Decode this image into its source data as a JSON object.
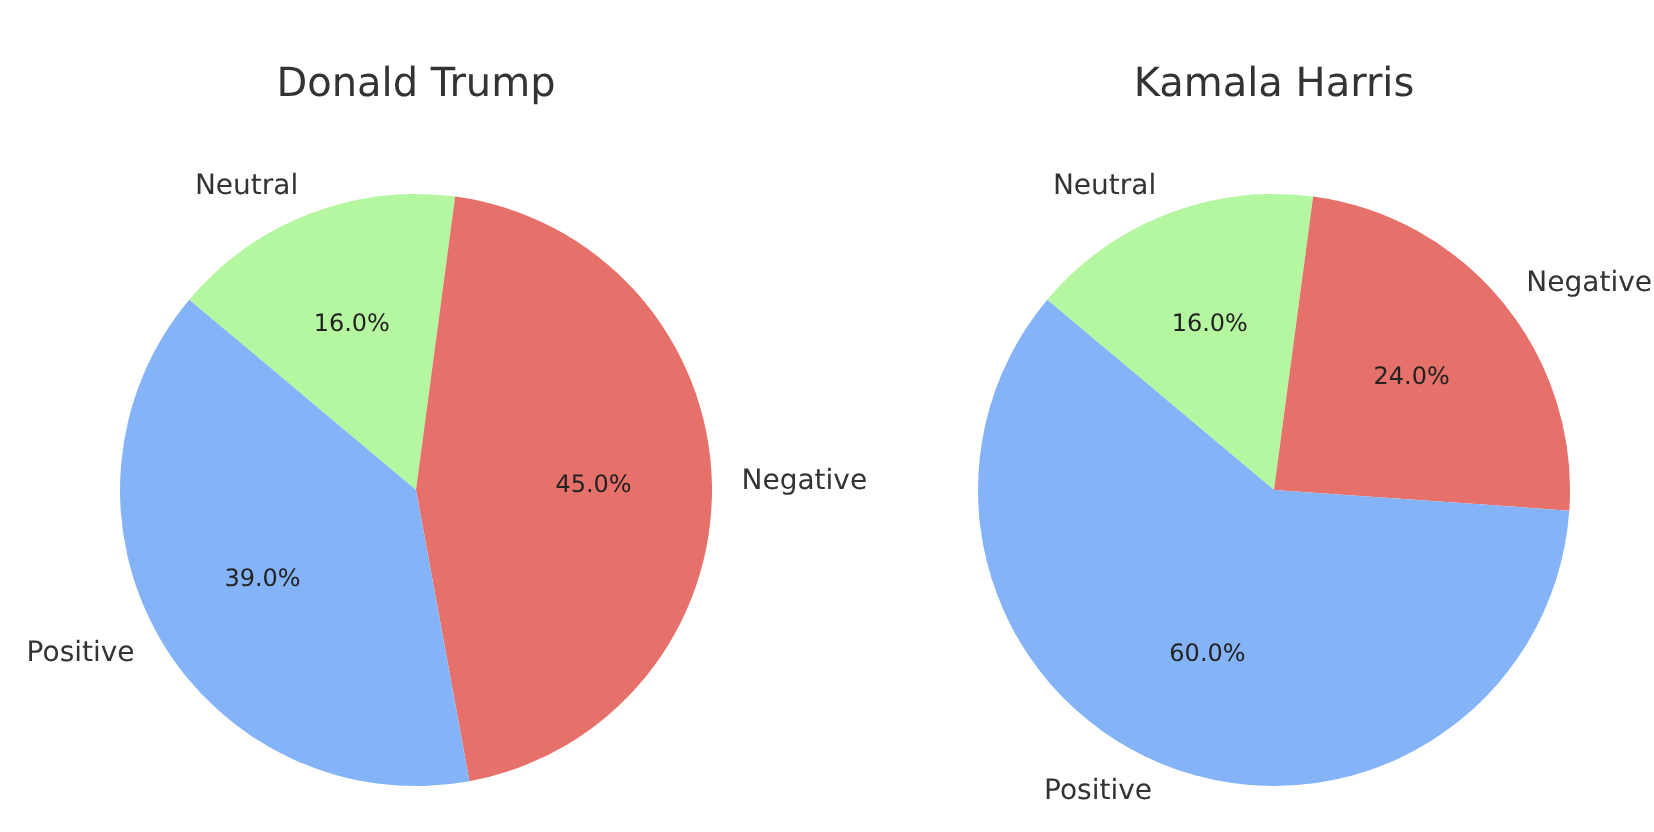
{
  "chart_data": [
    {
      "type": "pie",
      "title": "Donald Trump",
      "categories": [
        "Positive",
        "Negative",
        "Neutral"
      ],
      "values": [
        39,
        45,
        16
      ],
      "colors": [
        "#84b3f8",
        "#e5716a",
        "#b5f6a1"
      ],
      "value_labels": [
        "39.0%",
        "45.0%",
        "16.0%"
      ],
      "legend": false
    },
    {
      "type": "pie",
      "title": "Kamala Harris",
      "categories": [
        "Positive",
        "Negative",
        "Neutral"
      ],
      "values": [
        60,
        24,
        16
      ],
      "colors": [
        "#84b3f8",
        "#e5716a",
        "#b5f6a1"
      ],
      "value_labels": [
        "60.0%",
        "24.0%",
        "16.0%"
      ],
      "legend": false
    }
  ]
}
